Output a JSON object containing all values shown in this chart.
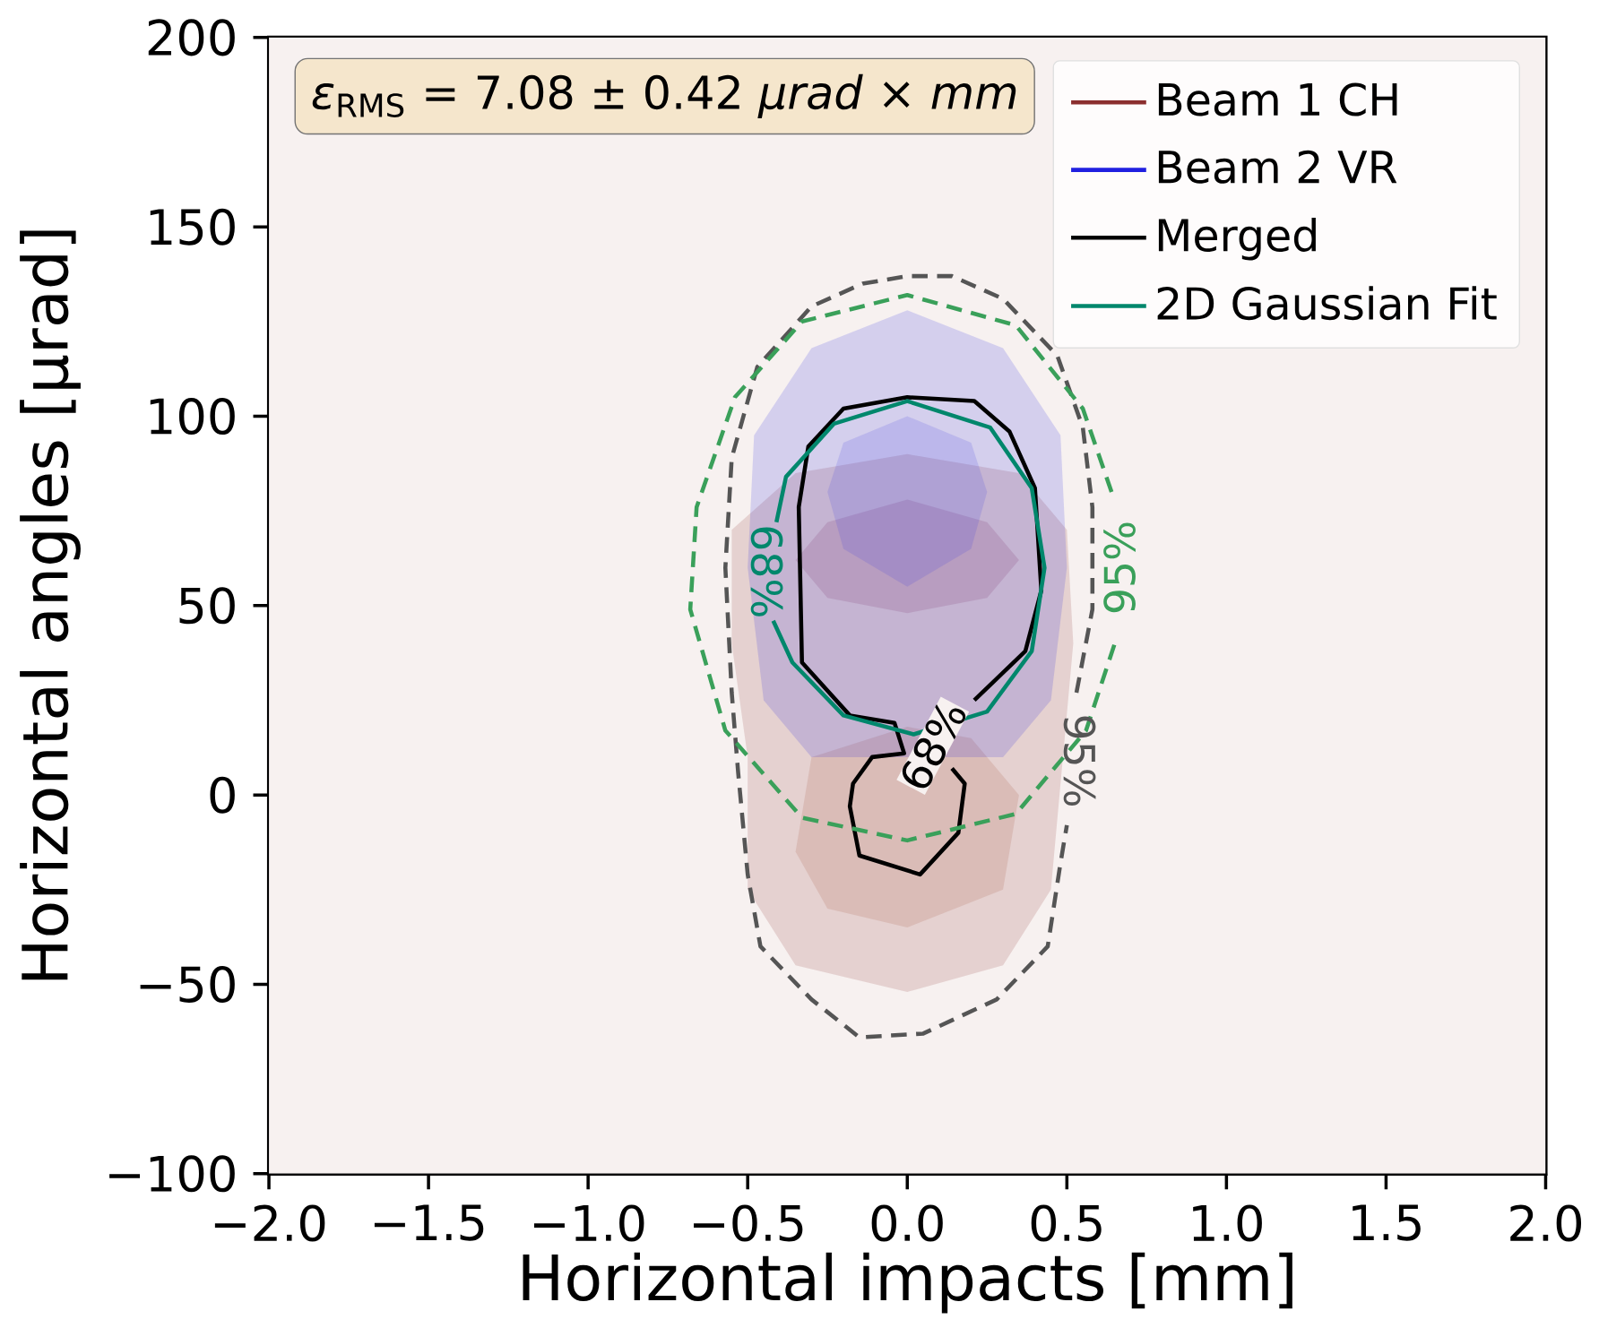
{
  "chart_data": {
    "type": "line",
    "xlabel": "Horizontal impacts [mm]",
    "ylabel": "Horizontal angles [μrad]",
    "xlim": [
      -2,
      2
    ],
    "ylim": [
      -100,
      200
    ],
    "xticks": [
      {
        "value": -2,
        "label": "−2.0"
      },
      {
        "value": -1.5,
        "label": "−1.5"
      },
      {
        "value": -1,
        "label": "−1.0"
      },
      {
        "value": -0.5,
        "label": "−0.5"
      },
      {
        "value": 0,
        "label": "0.0"
      },
      {
        "value": 0.5,
        "label": "0.5"
      },
      {
        "value": 1,
        "label": "1.0"
      },
      {
        "value": 1.5,
        "label": "1.5"
      },
      {
        "value": 2,
        "label": "2.0"
      }
    ],
    "yticks": [
      {
        "value": -100,
        "label": "−100"
      },
      {
        "value": -50,
        "label": "−50"
      },
      0,
      50,
      100,
      150,
      200
    ],
    "legend": "top right",
    "annotations": [
      "*ε*$_{RMS}$ = 7.08 ± 0.42 *μrad* × *mm*",
      "68%",
      "95%",
      "68%",
      "95%"
    ],
    "series": [
      {
        "name": "Beam 1 CH",
        "type": "area",
        "color": "#8b2e2e",
        "x": [
          0,
          0.3,
          0.45,
          0.48,
          0.52,
          0.5,
          0.35,
          0,
          -0.35,
          -0.55,
          -0.55,
          -0.5,
          -0.5,
          -0.35
        ],
        "values": [
          -52,
          -45,
          -25,
          null,
          40,
          70,
          85,
          90,
          85,
          70,
          40,
          10,
          -25,
          -45
        ]
      },
      {
        "type": "area",
        "color": "#8b2e4a",
        "x": [
          0,
          0.25,
          0.35,
          0.25,
          0,
          -0.25,
          -0.35,
          -0.25
        ],
        "values": [
          78,
          72,
          62,
          52,
          48,
          52,
          62,
          72
        ]
      },
      {
        "type": "area",
        "color": "#a0523a",
        "x": [
          0,
          0.3,
          0.35,
          0.2,
          0,
          -0.3,
          -0.35,
          -0.25
        ],
        "values": [
          -35,
          -25,
          0,
          15,
          18,
          10,
          -15,
          -30
        ]
      },
      {
        "name": "Beam 2 VR",
        "type": "area",
        "color": "#2020e0",
        "x": [
          0,
          0.3,
          0.48,
          0.5,
          0.45,
          0.3,
          0,
          -0.3,
          -0.45,
          -0.5,
          -0.48,
          -0.3
        ],
        "values": [
          128,
          118,
          95,
          60,
          25,
          10,
          null,
          10,
          25,
          60,
          95,
          118
        ]
      },
      {
        "type": "area",
        "color": "#4040e0",
        "x": [
          0,
          0.2,
          0.25,
          0.2,
          0,
          -0.2,
          -0.25,
          -0.2
        ],
        "values": [
          100,
          93,
          80,
          65,
          55,
          65,
          80,
          93
        ]
      },
      {
        "color": "#555555",
        "line_style": "dashed",
        "x": [
          0.53,
          0.58,
          0.58,
          0.55,
          0.47,
          0.3,
          0.14,
          0,
          -0.14,
          -0.3,
          -0.47,
          -0.55,
          -0.57,
          -0.55,
          -0.53,
          -0.5,
          -0.46,
          -0.3,
          -0.15,
          0.05,
          0.28,
          0.44,
          0.48,
          0.5
        ],
        "values": [
          27,
          49,
          76,
          97,
          116,
          131,
          137,
          137,
          135,
          129,
          113,
          89,
          60,
          27,
          6,
          -21,
          -40,
          -54,
          -64,
          -63,
          -54,
          -40,
          -18,
          -8
        ]
      },
      {
        "name": "Merged",
        "color": "#000000",
        "line_style": "solid",
        "x": [
          0.21,
          0.37,
          0.42,
          0.4,
          0.32,
          0.21,
          0,
          -0.2,
          -0.31,
          -0.34,
          -0.33,
          -0.18,
          -0.04,
          -0.01,
          -0.11,
          -0.17,
          -0.18,
          -0.15,
          0.04,
          0.16,
          0.18,
          0.14
        ],
        "values": [
          25,
          38,
          54,
          81,
          96,
          104,
          105,
          102,
          92,
          76,
          35,
          21,
          19,
          11,
          10,
          3,
          -3,
          -16,
          -21,
          -10,
          3,
          7
        ]
      },
      {
        "name": "2D Gaussian Fit",
        "color": "#00876c",
        "line_style": "solid",
        "x": [
          -0.41,
          -0.38,
          -0.23,
          0,
          0.26,
          0.39,
          0.43,
          0.39,
          0.25,
          0.02,
          -0.2,
          -0.36,
          -0.42
        ],
        "values": [
          72,
          84,
          98,
          104,
          97,
          81,
          60,
          38,
          22,
          16,
          21,
          35,
          46
        ]
      },
      {
        "color": "#3aa05a",
        "line_style": "dashed",
        "x": [
          0.64,
          0.55,
          0.34,
          0,
          -0.33,
          -0.54,
          -0.66,
          -0.68,
          -0.57,
          -0.33,
          0,
          0.34,
          0.56,
          0.65
        ],
        "values": [
          80,
          102,
          124,
          132,
          125,
          105,
          76,
          49,
          17,
          -6,
          -12,
          -5,
          17,
          40
        ]
      }
    ]
  }
}
